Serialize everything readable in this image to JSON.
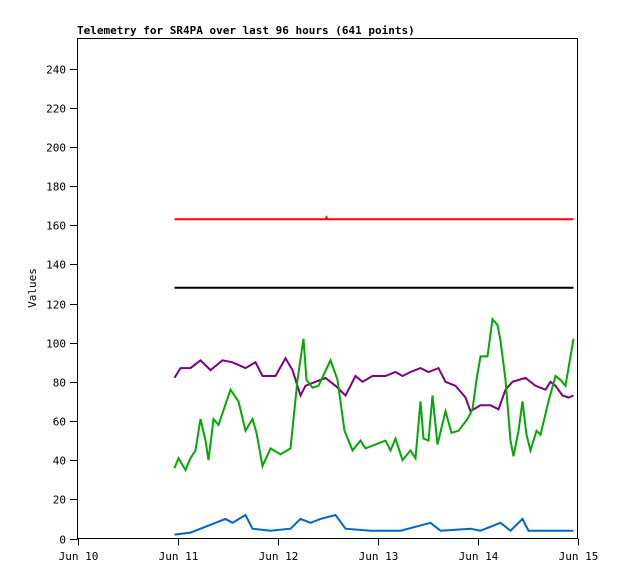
{
  "chart_data": {
    "type": "line",
    "title": "Telemetry for SR4PA over last 96 hours (641 points)",
    "xlabel": "",
    "ylabel": "Values",
    "x_unit": "day of June",
    "xlim": [
      10,
      15
    ],
    "ylim": [
      0,
      255
    ],
    "yticks": [
      0,
      20,
      40,
      60,
      80,
      100,
      120,
      140,
      160,
      180,
      200,
      220,
      240
    ],
    "xticks": [
      {
        "value": 10,
        "label": "Jun 10"
      },
      {
        "value": 11,
        "label": "Jun 11"
      },
      {
        "value": 12,
        "label": "Jun 12"
      },
      {
        "value": 13,
        "label": "Jun 13"
      },
      {
        "value": 14,
        "label": "Jun 14"
      },
      {
        "value": 15,
        "label": "Jun 15"
      }
    ],
    "grid": false,
    "series": [
      {
        "color": "#ff0000",
        "x": [
          10.97,
          12.48,
          12.49,
          12.5,
          14.96
        ],
        "y": [
          163,
          163,
          164,
          163,
          163
        ]
      },
      {
        "color": "#000000",
        "x": [
          10.97,
          14.96
        ],
        "y": [
          128,
          128
        ]
      },
      {
        "color": "#800080",
        "x": [
          10.97,
          11.03,
          11.13,
          11.23,
          11.33,
          11.45,
          11.55,
          11.68,
          11.78,
          11.85,
          11.98,
          12.08,
          12.15,
          12.23,
          12.28,
          12.38,
          12.48,
          12.58,
          12.68,
          12.78,
          12.85,
          12.95,
          13.08,
          13.18,
          13.25,
          13.33,
          13.43,
          13.51,
          13.61,
          13.68,
          13.78,
          13.88,
          13.93,
          14.03,
          14.13,
          14.21,
          14.28,
          14.35,
          14.48,
          14.58,
          14.68,
          14.73,
          14.78,
          14.85,
          14.91,
          14.96
        ],
        "y": [
          82,
          87,
          87,
          91,
          86,
          91,
          90,
          87,
          90,
          83,
          83,
          92,
          86,
          73,
          78,
          80,
          82,
          78,
          73,
          83,
          80,
          83,
          83,
          85,
          83,
          85,
          87,
          85,
          87,
          80,
          78,
          72,
          65,
          68,
          68,
          66,
          76,
          80,
          82,
          78,
          76,
          80,
          78,
          73,
          72,
          73
        ]
      },
      {
        "color": "#00aa00",
        "x": [
          10.97,
          11.01,
          11.08,
          11.13,
          11.18,
          11.23,
          11.28,
          11.31,
          11.36,
          11.41,
          11.53,
          11.61,
          11.68,
          11.75,
          11.79,
          11.85,
          11.93,
          12.03,
          12.13,
          12.2,
          12.26,
          12.29,
          12.35,
          12.41,
          12.53,
          12.6,
          12.67,
          12.75,
          12.83,
          12.88,
          12.98,
          13.08,
          13.13,
          13.18,
          13.25,
          13.33,
          13.38,
          13.43,
          13.46,
          13.51,
          13.55,
          13.6,
          13.68,
          13.74,
          13.81,
          13.9,
          13.95,
          13.99,
          14.03,
          14.1,
          14.15,
          14.2,
          14.23,
          14.28,
          14.33,
          14.36,
          14.41,
          14.45,
          14.49,
          14.53,
          14.59,
          14.63,
          14.71,
          14.78,
          14.83,
          14.88,
          14.93,
          14.96
        ],
        "y": [
          36,
          41,
          35,
          41,
          45,
          61,
          50,
          40,
          61,
          58,
          76,
          70,
          55,
          61,
          54,
          37,
          46,
          43,
          46,
          81,
          102,
          81,
          77,
          78,
          91,
          81,
          55,
          45,
          50,
          46,
          48,
          50,
          45,
          51,
          40,
          45,
          41,
          70,
          51,
          50,
          73,
          48,
          65,
          54,
          55,
          61,
          66,
          81,
          93,
          93,
          112,
          109,
          101,
          81,
          50,
          42,
          55,
          70,
          53,
          45,
          55,
          53,
          70,
          83,
          81,
          78,
          93,
          102
        ]
      },
      {
        "color": "#0066cc",
        "x": [
          10.97,
          11.13,
          11.33,
          11.48,
          11.55,
          11.68,
          11.75,
          11.93,
          12.13,
          12.23,
          12.33,
          12.43,
          12.58,
          12.68,
          12.93,
          13.23,
          13.53,
          13.63,
          13.93,
          14.03,
          14.23,
          14.33,
          14.45,
          14.51,
          14.96
        ],
        "y": [
          2,
          3,
          7,
          10,
          8,
          12,
          5,
          4,
          5,
          10,
          8,
          10,
          12,
          5,
          4,
          4,
          8,
          4,
          5,
          4,
          8,
          4,
          10,
          4,
          4
        ]
      }
    ]
  }
}
